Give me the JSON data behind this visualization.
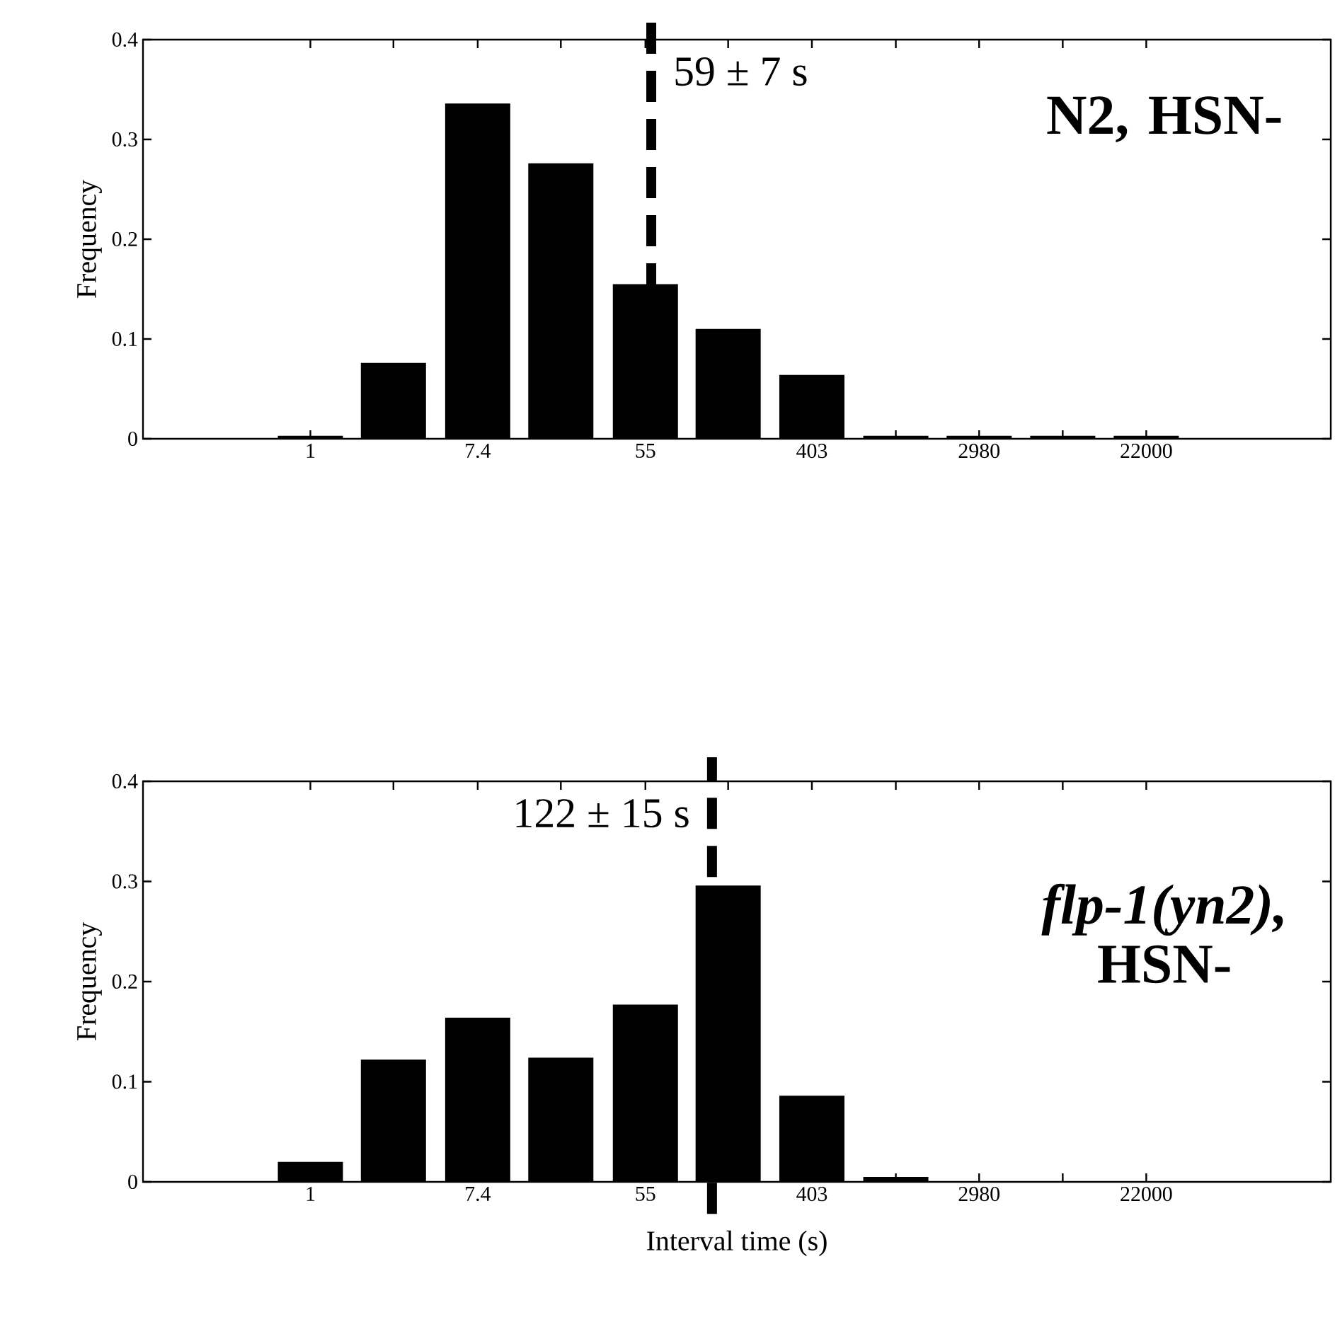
{
  "chart_data": [
    {
      "type": "bar",
      "log": "x",
      "ylabel": "Frequency",
      "color": "#000000",
      "x": [
        1,
        2.7,
        7.4,
        20,
        55,
        148,
        403,
        1100,
        2980,
        8100,
        22000
      ],
      "values": [
        0.003,
        0.076,
        0.336,
        0.276,
        0.155,
        0.11,
        0.064,
        0.003,
        0.003,
        0.003,
        0.003
      ],
      "xlim": [
        0.135,
        200000
      ],
      "ylim": [
        0,
        0.4
      ],
      "xticks": [
        {
          "value": 1,
          "label": "1"
        },
        {
          "value": 2.7,
          "label": null
        },
        {
          "value": 7.4,
          "label": "7.4"
        },
        {
          "value": 20,
          "label": null
        },
        {
          "value": 55,
          "label": "55"
        },
        {
          "value": 148,
          "label": null
        },
        {
          "value": 403,
          "label": "403"
        },
        {
          "value": 1100,
          "label": null
        },
        {
          "value": 2980,
          "label": "2980"
        },
        {
          "value": 8100,
          "label": null
        },
        {
          "value": 22000,
          "label": "22000"
        }
      ],
      "yticks": [
        0,
        0.1,
        0.2,
        0.3,
        0.4
      ],
      "ref_lines": [
        {
          "axis": "x",
          "value": 59,
          "label": "59 ± 7 s",
          "line_style": "dashed",
          "color": "#000000"
        }
      ],
      "annotations": [
        "N2, HSN-"
      ]
    },
    {
      "type": "bar",
      "log": "x",
      "ylabel": "Frequency",
      "xlabel": "Interval time (s)",
      "color": "#000000",
      "x": [
        1,
        2.7,
        7.4,
        20,
        55,
        148,
        403,
        1100
      ],
      "values": [
        0.02,
        0.122,
        0.164,
        0.124,
        0.177,
        0.296,
        0.086,
        0.005
      ],
      "xlim": [
        0.135,
        200000
      ],
      "ylim": [
        0,
        0.4
      ],
      "xticks": [
        {
          "value": 1,
          "label": "1"
        },
        {
          "value": 2.7,
          "label": null
        },
        {
          "value": 7.4,
          "label": "7.4"
        },
        {
          "value": 20,
          "label": null
        },
        {
          "value": 55,
          "label": "55"
        },
        {
          "value": 148,
          "label": null
        },
        {
          "value": 403,
          "label": "403"
        },
        {
          "value": 1100,
          "label": null
        },
        {
          "value": 2980,
          "label": "2980"
        },
        {
          "value": 8100,
          "label": null
        },
        {
          "value": 22000,
          "label": "22000"
        }
      ],
      "yticks": [
        0,
        0.1,
        0.2,
        0.3,
        0.4
      ],
      "ref_lines": [
        {
          "axis": "x",
          "value": 122,
          "label": "122 ± 15 s",
          "line_style": "dashed",
          "color": "#000000"
        }
      ],
      "annotations": [
        "*flp-1(yn2),* HSN-"
      ]
    }
  ]
}
